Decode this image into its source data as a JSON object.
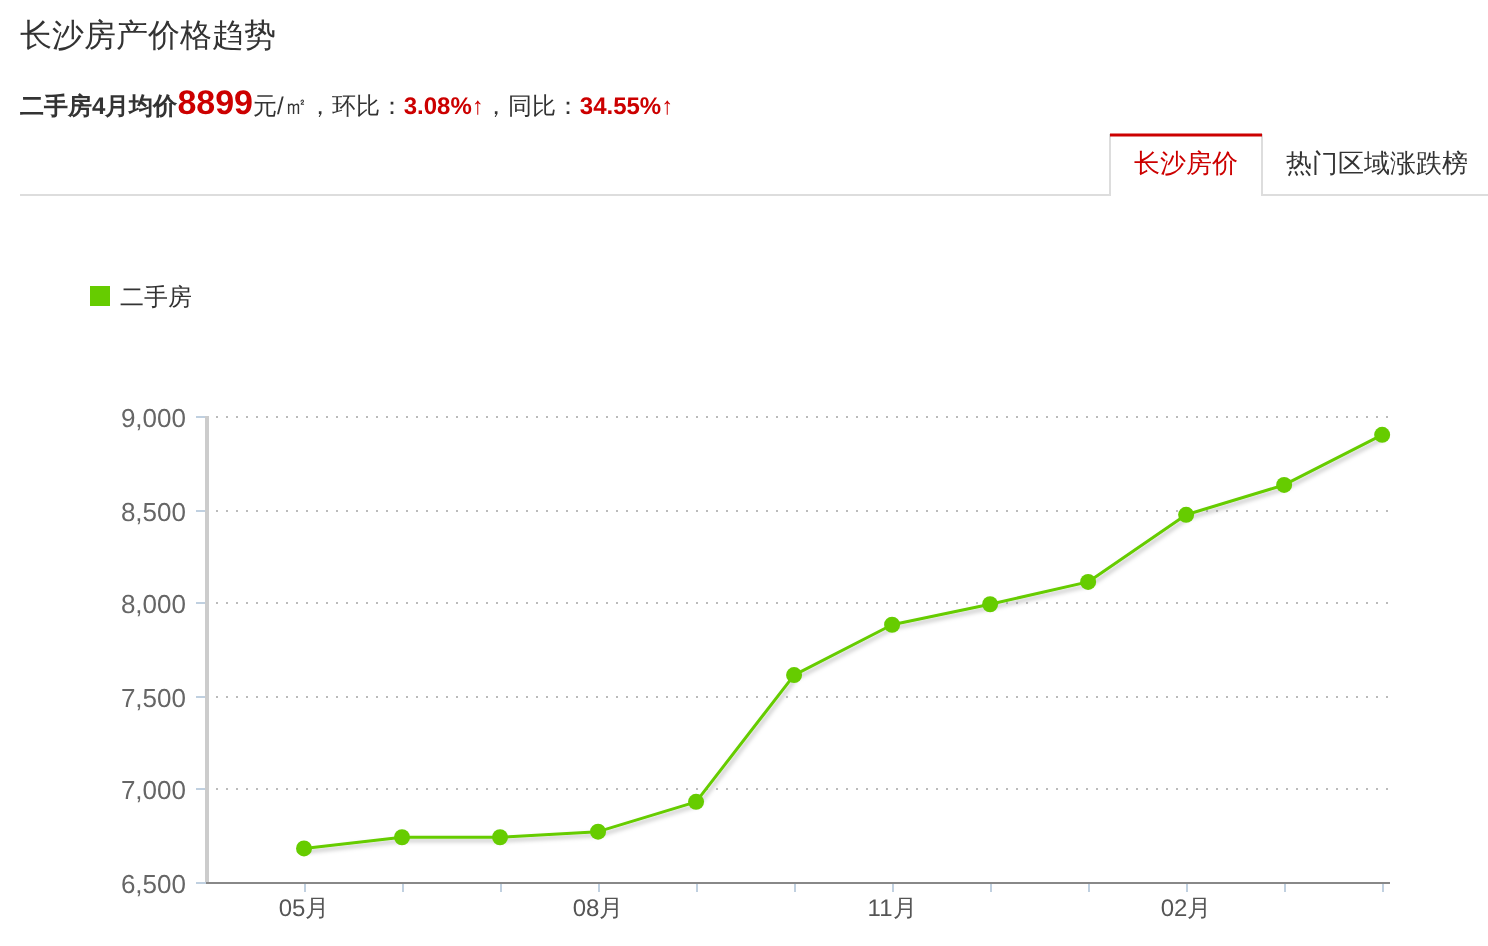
{
  "chart_data": {
    "type": "line",
    "title": "长沙房产价格趋势",
    "subtitle": "二手房4月均价8899元/㎡，环比：3.08%↑，同比：34.55%↑",
    "annotations": [
      "长沙房价",
      "热门区域涨跌榜"
    ],
    "categories": [
      "05月",
      null,
      null,
      "08月",
      null,
      null,
      "11月",
      null,
      null,
      "02月",
      null,
      null
    ],
    "series": [
      {
        "name": "二手房",
        "color": "#66cc00",
        "values": [
          6680,
          6740,
          6740,
          6770,
          6930,
          7610,
          7880,
          7990,
          8110,
          8470,
          8630,
          8899
        ]
      }
    ],
    "ylim": [
      6500,
      9000
    ],
    "yticks": [
      {
        "value": 6500,
        "label": "6,500"
      },
      {
        "value": 7000,
        "label": "7,000"
      },
      {
        "value": 7500,
        "label": "7,500"
      },
      {
        "value": 8000,
        "label": "8,000"
      },
      {
        "value": 8500,
        "label": "8,500"
      },
      {
        "value": 9000,
        "label": "9,000"
      }
    ],
    "grid": "y",
    "legend": "top left",
    "marker": "circle",
    "line_style": "solid"
  }
}
